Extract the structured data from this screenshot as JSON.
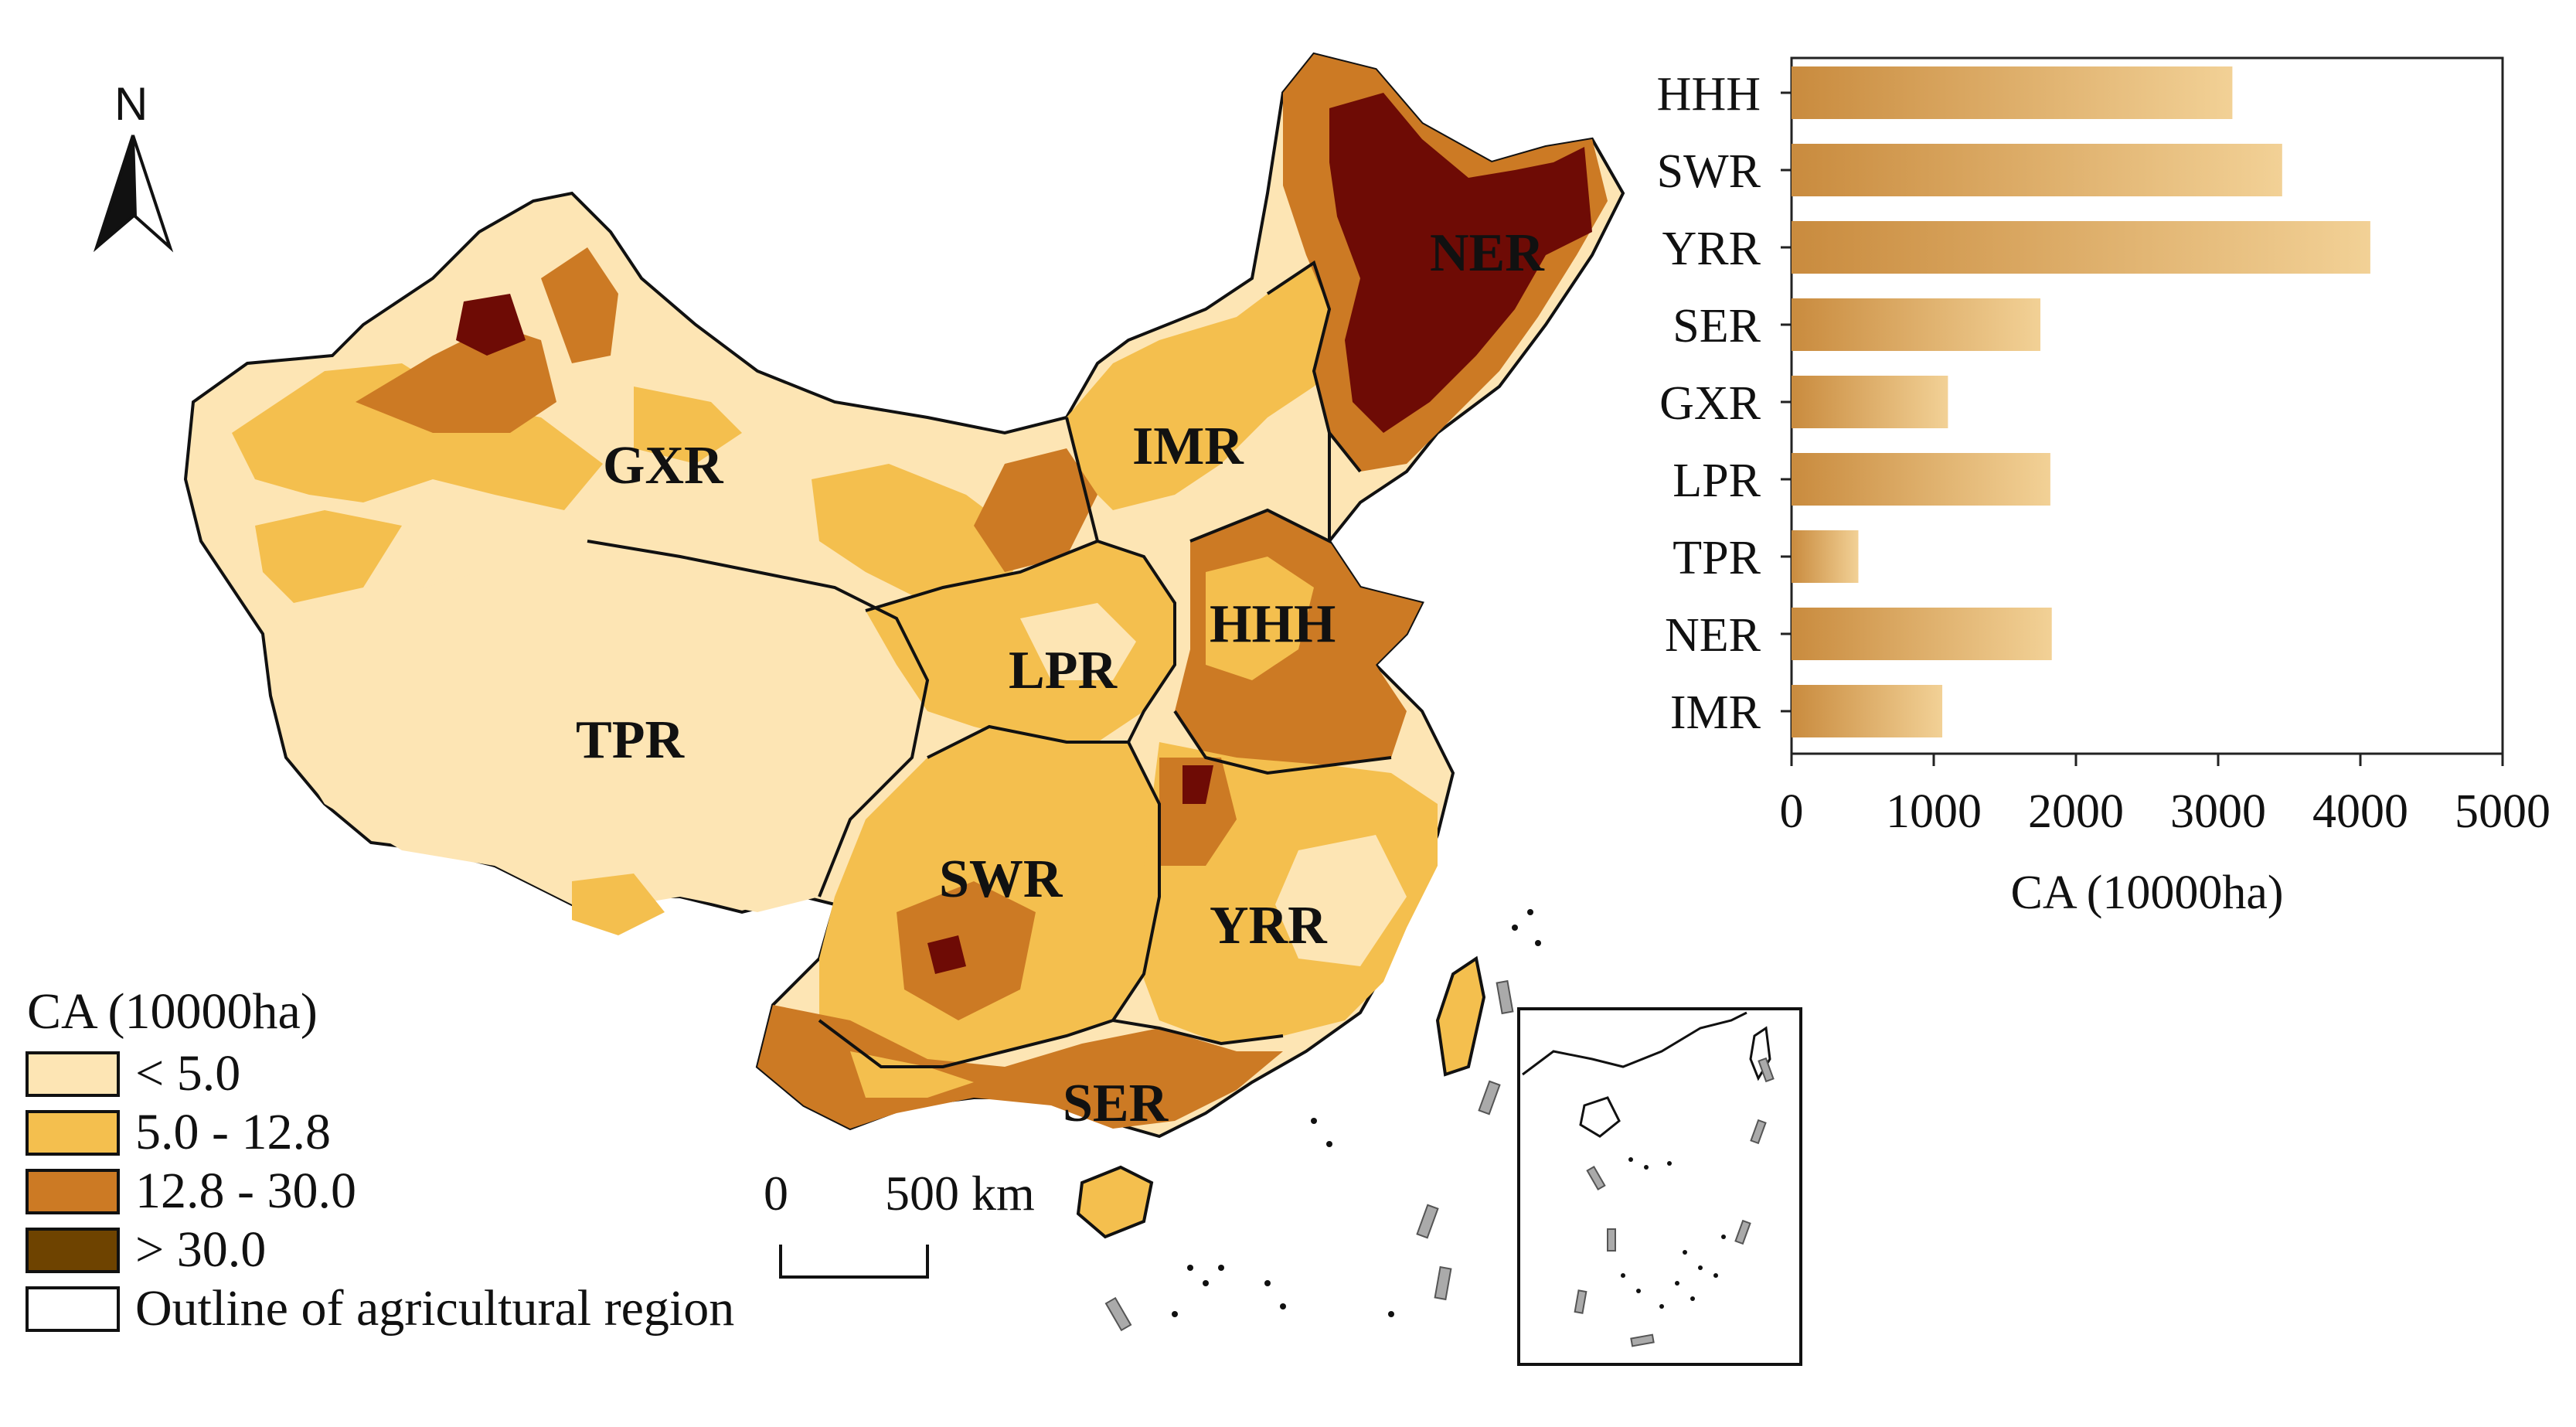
{
  "map": {
    "north_label": "N",
    "regions": [
      {
        "code": "NER",
        "class": 3
      },
      {
        "code": "IMR",
        "class": 1
      },
      {
        "code": "GXR",
        "class": 1
      },
      {
        "code": "HHH",
        "class": 2
      },
      {
        "code": "LPR",
        "class": 1
      },
      {
        "code": "TPR",
        "class": 0
      },
      {
        "code": "SWR",
        "class": 1
      },
      {
        "code": "YRR",
        "class": 1
      },
      {
        "code": "SER",
        "class": 1
      }
    ],
    "scale_bar": {
      "zero": "0",
      "distance": "500 km"
    },
    "legend": {
      "title": "CA (10000ha)",
      "items": [
        {
          "label": "< 5.0",
          "color": "#fde5b4"
        },
        {
          "label": "5.0 - 12.8",
          "color": "#f4bf4e"
        },
        {
          "label": "12.8 - 30.0",
          "color": "#cc7a24"
        },
        {
          "label": "> 30.0",
          "color": "#6e4300"
        },
        {
          "label": "Outline of agricultural region",
          "color": "#ffffff"
        }
      ]
    },
    "colors": {
      "class_0": "#fde5b4",
      "class_1": "#f4bf4e",
      "class_2": "#cc7a24",
      "class_3": "#6e0b05",
      "outline": "#111111"
    }
  },
  "chart_data": {
    "type": "bar",
    "orientation": "horizontal",
    "categories": [
      "HHH",
      "SWR",
      "YRR",
      "SER",
      "GXR",
      "LPR",
      "TPR",
      "NER",
      "IMR"
    ],
    "values": [
      3100,
      3450,
      4070,
      1750,
      1100,
      1820,
      470,
      1830,
      1060
    ],
    "xlabel": "CA (10000ha)",
    "xlim": [
      0,
      5000
    ],
    "xticks": [
      "0",
      "1000",
      "2000",
      "3000",
      "4000",
      "5000"
    ],
    "grid": false,
    "bar_gradient": [
      "#c98b3e",
      "#f2d196"
    ]
  }
}
